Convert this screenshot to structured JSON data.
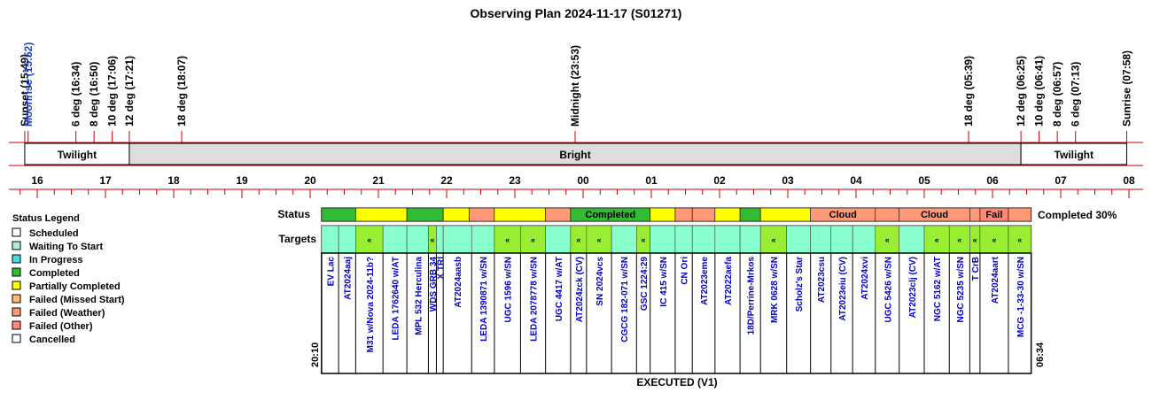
{
  "title": "Observing Plan 2024-11-17 (S01271)",
  "colors": {
    "scheduled": "#ffffff",
    "waiting": "#aaeedd",
    "inprogress": "#44dddd",
    "completed": "#33bb33",
    "partial": "#ffff00",
    "missed": "#ffbb77",
    "weather": "#ff9977",
    "other": "#ff8877",
    "cancelled": "#ffffff",
    "target_default": "#88ffcc",
    "target_hit": "#99ee33",
    "band_twilight": "#ffffff",
    "band_bright": "#dddddd",
    "axis": "#cc0000",
    "label_blue": "#0000cc",
    "moonrise": "#2244cc"
  },
  "timeline": {
    "events": [
      {
        "label": "Sunset (15:49)",
        "hour": 15.817,
        "color": "black"
      },
      {
        "label": "Moonrise (15:52)",
        "hour": 15.867,
        "color": "blue"
      },
      {
        "label": "6 deg (16:34)",
        "hour": 16.567,
        "color": "black"
      },
      {
        "label": "8 deg (16:50)",
        "hour": 16.833,
        "color": "black"
      },
      {
        "label": "10 deg (17:06)",
        "hour": 17.1,
        "color": "black"
      },
      {
        "label": "12 deg (17:21)",
        "hour": 17.35,
        "color": "black"
      },
      {
        "label": "18 deg (18:07)",
        "hour": 18.117,
        "color": "black"
      },
      {
        "label": "Midnight (23:53)",
        "hour": 23.883,
        "color": "black"
      },
      {
        "label": "18 deg (05:39)",
        "hour": 29.65,
        "color": "black"
      },
      {
        "label": "12 deg (06:25)",
        "hour": 30.417,
        "color": "black"
      },
      {
        "label": "10 deg (06:41)",
        "hour": 30.683,
        "color": "black"
      },
      {
        "label": "8 deg (06:57)",
        "hour": 30.95,
        "color": "black"
      },
      {
        "label": "6 deg (07:13)",
        "hour": 31.217,
        "color": "black"
      },
      {
        "label": "Sunrise (07:58)",
        "hour": 31.967,
        "color": "black"
      }
    ],
    "bands": [
      {
        "label": "Twilight",
        "start": 15.817,
        "end": 17.35,
        "kind": "twilight"
      },
      {
        "label": "Bright",
        "start": 17.35,
        "end": 30.417,
        "kind": "bright"
      },
      {
        "label": "Twilight",
        "start": 30.417,
        "end": 31.967,
        "kind": "twilight"
      }
    ],
    "hour_labels": [
      "16",
      "17",
      "18",
      "19",
      "20",
      "21",
      "22",
      "23",
      "00",
      "01",
      "02",
      "03",
      "04",
      "05",
      "06",
      "07",
      "08"
    ]
  },
  "rows": {
    "status_label": "Status",
    "targets_label": "Targets",
    "completion_text": "Completed 30%",
    "start_time": "20:10",
    "end_time": "06:34",
    "footer": "EXECUTED (V1)"
  },
  "status_segments": [
    {
      "start": 20.167,
      "end": 20.667,
      "status": "completed",
      "label": ""
    },
    {
      "start": 20.667,
      "end": 21.417,
      "status": "partial",
      "label": ""
    },
    {
      "start": 21.417,
      "end": 21.95,
      "status": "completed",
      "label": ""
    },
    {
      "start": 21.95,
      "end": 22.333,
      "status": "partial",
      "label": ""
    },
    {
      "start": 22.333,
      "end": 22.7,
      "status": "weather",
      "label": ""
    },
    {
      "start": 22.7,
      "end": 23.45,
      "status": "partial",
      "label": ""
    },
    {
      "start": 23.45,
      "end": 23.817,
      "status": "weather",
      "label": ""
    },
    {
      "start": 23.817,
      "end": 24.983,
      "status": "completed",
      "label": "Completed"
    },
    {
      "start": 24.983,
      "end": 25.35,
      "status": "partial",
      "label": ""
    },
    {
      "start": 25.35,
      "end": 25.6,
      "status": "weather",
      "label": ""
    },
    {
      "start": 25.6,
      "end": 25.933,
      "status": "weather",
      "label": ""
    },
    {
      "start": 25.933,
      "end": 26.3,
      "status": "partial",
      "label": ""
    },
    {
      "start": 26.3,
      "end": 26.6,
      "status": "completed",
      "label": ""
    },
    {
      "start": 26.6,
      "end": 27.333,
      "status": "partial",
      "label": ""
    },
    {
      "start": 27.333,
      "end": 28.283,
      "status": "weather",
      "label": "Cloud"
    },
    {
      "start": 28.283,
      "end": 28.633,
      "status": "weather",
      "label": ""
    },
    {
      "start": 28.633,
      "end": 29.667,
      "status": "weather",
      "label": "Cloud"
    },
    {
      "start": 29.667,
      "end": 29.817,
      "status": "weather",
      "label": ""
    },
    {
      "start": 29.817,
      "end": 30.233,
      "status": "other",
      "label": "Fail"
    },
    {
      "start": 30.233,
      "end": 30.567,
      "status": "weather",
      "label": ""
    }
  ],
  "targets": [
    {
      "name": "EV Lac",
      "start": 20.167,
      "end": 20.417,
      "hit": false
    },
    {
      "name": "AT2024aaj",
      "start": 20.417,
      "end": 20.667,
      "hit": false
    },
    {
      "name": "M31 w/Nova 2024-11b?",
      "start": 20.667,
      "end": 21.067,
      "hit": true
    },
    {
      "name": "LEDA 1762640 w/AT",
      "start": 21.067,
      "end": 21.417,
      "hit": false
    },
    {
      "name": "MPL 532 Herculina",
      "start": 21.417,
      "end": 21.733,
      "hit": false
    },
    {
      "name": "WDS GRB 34",
      "start": 21.733,
      "end": 21.85,
      "hit": true
    },
    {
      "name": "X TRI",
      "start": 21.85,
      "end": 21.95,
      "hit": false
    },
    {
      "name": "AT2024aasb",
      "start": 21.95,
      "end": 22.367,
      "hit": false
    },
    {
      "name": "LEDA 1390871 w/SN",
      "start": 22.367,
      "end": 22.7,
      "hit": false
    },
    {
      "name": "UGC 1596 w/SN",
      "start": 22.7,
      "end": 23.083,
      "hit": true
    },
    {
      "name": "LEDA 2078778 w/SN",
      "start": 23.083,
      "end": 23.45,
      "hit": true
    },
    {
      "name": "UGC 4417 w/AT",
      "start": 23.45,
      "end": 23.817,
      "hit": false
    },
    {
      "name": "AT2024zck (CV)",
      "start": 23.817,
      "end": 24.05,
      "hit": true
    },
    {
      "name": "SN 2024vcs",
      "start": 24.05,
      "end": 24.417,
      "hit": true
    },
    {
      "name": "CGCG 182-071 w/SN",
      "start": 24.417,
      "end": 24.783,
      "hit": false
    },
    {
      "name": "GSC 1224:29",
      "start": 24.783,
      "end": 24.983,
      "hit": true
    },
    {
      "name": "IC 415 w/SN",
      "start": 24.983,
      "end": 25.35,
      "hit": false
    },
    {
      "name": "CN Ori",
      "start": 25.35,
      "end": 25.6,
      "hit": false
    },
    {
      "name": "AT2023eme",
      "start": 25.6,
      "end": 25.933,
      "hit": false
    },
    {
      "name": "AT2022aefa",
      "start": 25.933,
      "end": 26.3,
      "hit": false
    },
    {
      "name": "18D/Perrine-Mrkos",
      "start": 26.3,
      "end": 26.6,
      "hit": false
    },
    {
      "name": "MRK 0628 w/SN",
      "start": 26.6,
      "end": 26.983,
      "hit": true
    },
    {
      "name": "Scholz's Star",
      "start": 26.983,
      "end": 27.333,
      "hit": false
    },
    {
      "name": "AT2023csu",
      "start": 27.333,
      "end": 27.633,
      "hit": false
    },
    {
      "name": "AT2023eiu (CV)",
      "start": 27.633,
      "end": 27.95,
      "hit": false
    },
    {
      "name": "AT2024xvi",
      "start": 27.95,
      "end": 28.283,
      "hit": false
    },
    {
      "name": "UGC 5426 w/SN",
      "start": 28.283,
      "end": 28.633,
      "hit": true
    },
    {
      "name": "AT2023clj (CV)",
      "start": 28.633,
      "end": 29.0,
      "hit": false
    },
    {
      "name": "NGC 5162 w/AT",
      "start": 29.0,
      "end": 29.367,
      "hit": true
    },
    {
      "name": "NGC 5235 w/SN",
      "start": 29.367,
      "end": 29.667,
      "hit": true
    },
    {
      "name": "T CrB",
      "start": 29.667,
      "end": 29.817,
      "hit": true
    },
    {
      "name": "AT2024aart",
      "start": 29.817,
      "end": 30.233,
      "hit": true
    },
    {
      "name": "MCG -1-33-30 w/SN",
      "start": 30.233,
      "end": 30.567,
      "hit": true
    }
  ],
  "legend": {
    "title": "Status Legend",
    "items": [
      {
        "label": "Scheduled",
        "key": "scheduled"
      },
      {
        "label": "Waiting To Start",
        "key": "waiting"
      },
      {
        "label": "In Progress",
        "key": "inprogress"
      },
      {
        "label": "Completed",
        "key": "completed"
      },
      {
        "label": "Partially Completed",
        "key": "partial"
      },
      {
        "label": "Failed (Missed Start)",
        "key": "missed"
      },
      {
        "label": "Failed (Weather)",
        "key": "weather"
      },
      {
        "label": "Failed (Other)",
        "key": "other"
      },
      {
        "label": "Cancelled",
        "key": "cancelled"
      }
    ]
  }
}
